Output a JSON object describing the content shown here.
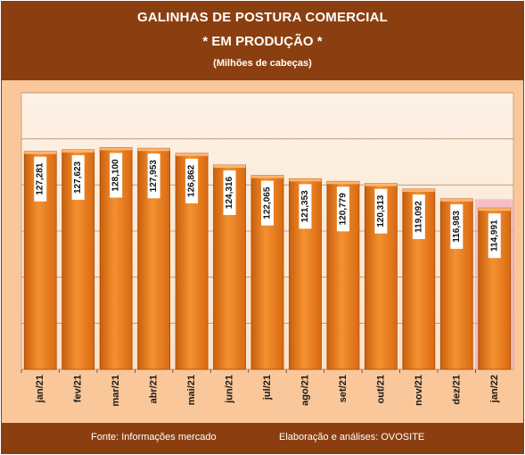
{
  "header": {
    "title": "GALINHAS DE POSTURA COMERCIAL",
    "subtitle": "* EM PRODUÇÃO *",
    "unit": "(Milhões de cabeças)"
  },
  "footer": {
    "source": "Fonte: Informações mercado",
    "elaboration": "Elaboração e análises: OVOSITE"
  },
  "colors": {
    "header_bg": "#8b3f10",
    "chart_bg": "#f9c79a",
    "plot_bg": "#fdf3e9",
    "bar": "#f0801e",
    "highlight": "#f2a2b8"
  },
  "chart_data": {
    "type": "bar",
    "categories": [
      "jan/21",
      "fev/21",
      "mar/21",
      "abr/21",
      "mai/21",
      "jun/21",
      "jul/21",
      "ago/21",
      "set/21",
      "out/21",
      "nov/21",
      "dez/21",
      "jan/22"
    ],
    "values": [
      127.281,
      127.623,
      128.1,
      127.953,
      126.862,
      124.316,
      122.065,
      121.353,
      120.779,
      120.313,
      119.092,
      116.983,
      114.991
    ],
    "data_labels": [
      "127,281",
      "127,623",
      "128,100",
      "127,953",
      "126,862",
      "124,316",
      "122,065",
      "121,353",
      "120,779",
      "120,313",
      "119,092",
      "116,983",
      "114,991"
    ],
    "highlighted_category": "jan/22",
    "ylim": [
      80,
      140
    ],
    "grid": true
  }
}
